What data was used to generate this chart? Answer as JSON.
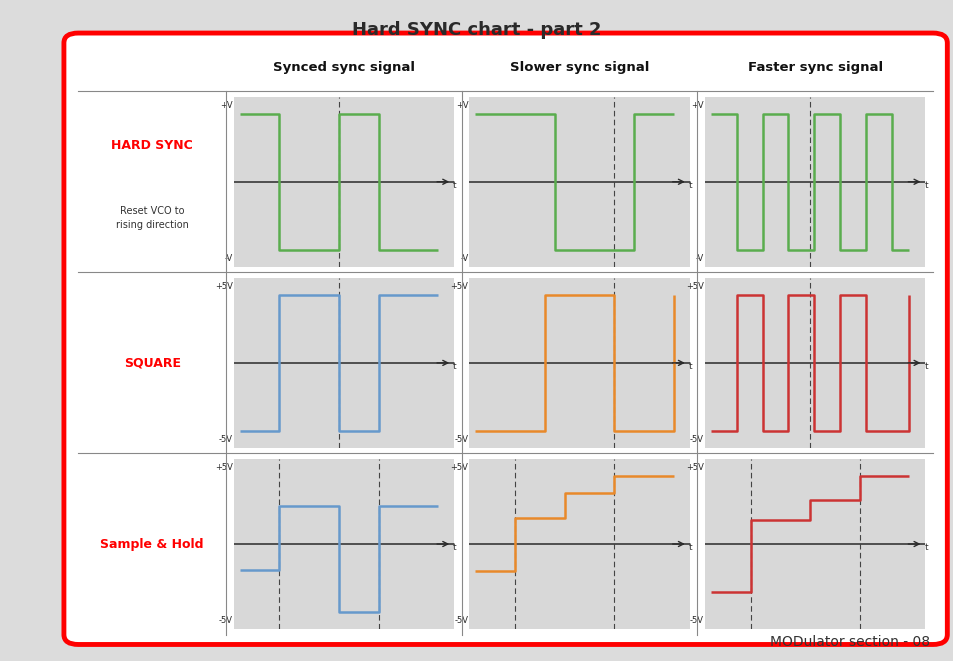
{
  "title": "Hard SYNC chart - part 2",
  "col_headers": [
    "Synced sync signal",
    "Slower sync signal",
    "Faster sync signal"
  ],
  "row_labels": [
    "HARD SYNC",
    "SQUARE",
    "Sample & Hold"
  ],
  "reset_text": "Reset VCO to\nrising direction",
  "footer": "MODulator section - 08",
  "sync_color": "#5aad4e",
  "blue_color": "#6699cc",
  "orange_color": "#e8892a",
  "red_color": "#cc3333",
  "plot_bg": "#d8d8d8",
  "fig_bg": "#dcdcdc"
}
